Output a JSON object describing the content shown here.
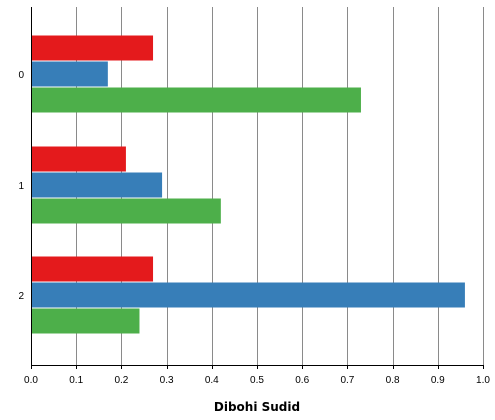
{
  "chart_data": {
    "type": "bar",
    "orientation": "horizontal",
    "categories": [
      "0",
      "1",
      "2"
    ],
    "series": [
      {
        "color": "#e41a1c",
        "values": [
          0.27,
          0.21,
          0.27
        ]
      },
      {
        "color": "#377eb8",
        "values": [
          0.17,
          0.29,
          0.96
        ]
      },
      {
        "color": "#4daf4a",
        "values": [
          0.73,
          0.42,
          0.24
        ]
      }
    ],
    "xlim": [
      0,
      1.0
    ],
    "xticks": [
      "0.0",
      "0.1",
      "0.2",
      "0.3",
      "0.4",
      "0.5",
      "0.6",
      "0.7",
      "0.8",
      "0.9",
      "1.0"
    ],
    "xlabel": "Dibohi Sudid",
    "ylabel": "",
    "title": "",
    "grid": "vertical",
    "legend": "none"
  }
}
